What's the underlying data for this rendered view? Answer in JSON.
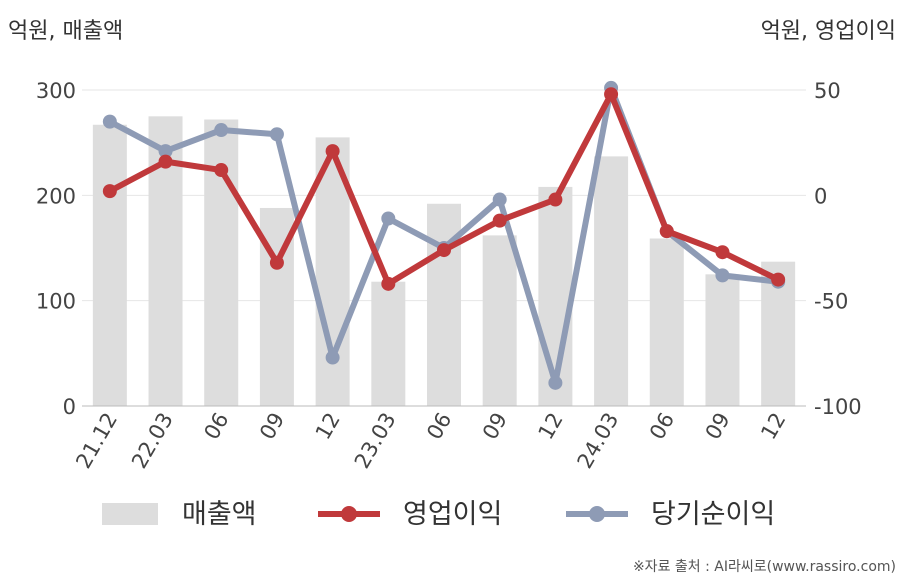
{
  "chart_data": {
    "type": "bar+line",
    "categories": [
      "21.12",
      "22.03",
      "06",
      "09",
      "12",
      "23.03",
      "06",
      "09",
      "12",
      "24.03",
      "06",
      "09",
      "12"
    ],
    "left_axis": {
      "label": "억원, 매출액",
      "min": 0,
      "max": 300,
      "ticks": [
        0,
        100,
        200,
        300
      ]
    },
    "right_axis": {
      "label": "억원, 영업이익",
      "min": -100,
      "max": 50,
      "ticks": [
        50,
        0,
        -50,
        -100
      ]
    },
    "series": [
      {
        "name": "매출액",
        "kind": "bar",
        "axis": "left",
        "color": "#dddddd",
        "values": [
          267,
          275,
          272,
          188,
          255,
          118,
          192,
          162,
          208,
          237,
          159,
          125,
          137
        ]
      },
      {
        "name": "영업이익",
        "kind": "line",
        "axis": "right",
        "color": "#c0393b",
        "values": [
          2,
          16,
          12,
          -32,
          21,
          -42,
          -26,
          -12,
          -2,
          48,
          -17,
          -27,
          -40
        ]
      },
      {
        "name": "당기순이익",
        "kind": "line",
        "axis": "right",
        "color": "#8e9bb5",
        "values": [
          35,
          21,
          31,
          29,
          -77,
          -11,
          -25,
          -2,
          -89,
          51,
          -17,
          -38,
          -41
        ]
      }
    ],
    "grid": true,
    "legend_position": "bottom"
  },
  "source_text": "※자료 출처 : AI라씨로(www.rassiro.com)"
}
